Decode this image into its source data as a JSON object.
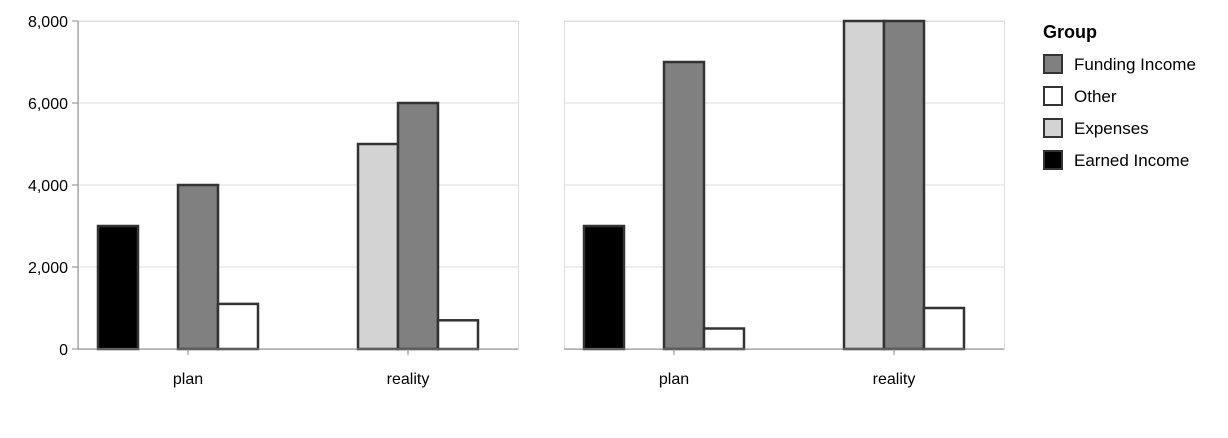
{
  "chart_data": {
    "type": "bar",
    "subtype": "grouped-faceted",
    "y_ticks": [
      0,
      2000,
      4000,
      6000,
      8000
    ],
    "y_tick_labels": [
      "0",
      "2,000",
      "4,000",
      "6,000",
      "8,000"
    ],
    "ylim": [
      0,
      8000
    ],
    "grid": true,
    "legend": {
      "title": "Group",
      "placement": "right",
      "items": [
        {
          "name": "Funding Income",
          "color": "#808080"
        },
        {
          "name": "Other",
          "color": "#ffffff"
        },
        {
          "name": "Expenses",
          "color": "#d3d3d3"
        },
        {
          "name": "Earned Income",
          "color": "#000000"
        }
      ]
    },
    "series_order": [
      "Earned Income",
      "Expenses",
      "Funding Income",
      "Other"
    ],
    "categories": [
      "plan",
      "reality"
    ],
    "facets": [
      {
        "series": [
          {
            "name": "Earned Income",
            "values": [
              3000,
              null
            ]
          },
          {
            "name": "Expenses",
            "values": [
              null,
              5000
            ]
          },
          {
            "name": "Funding Income",
            "values": [
              4000,
              6000
            ]
          },
          {
            "name": "Other",
            "values": [
              1100,
              700
            ]
          }
        ]
      },
      {
        "series": [
          {
            "name": "Earned Income",
            "values": [
              3000,
              null
            ]
          },
          {
            "name": "Expenses",
            "values": [
              null,
              8000
            ]
          },
          {
            "name": "Funding Income",
            "values": [
              7000,
              8000
            ]
          },
          {
            "name": "Other",
            "values": [
              500,
              1000
            ]
          }
        ]
      }
    ]
  }
}
